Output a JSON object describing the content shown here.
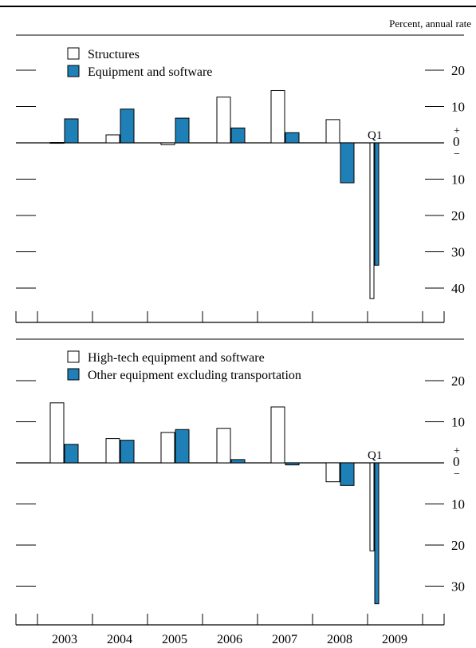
{
  "units": "Percent, annual rate",
  "colors": {
    "open": "#ffffff",
    "filled": "#1f80b8",
    "stroke": "#000000"
  },
  "x_categories": [
    "2003",
    "2004",
    "2005",
    "2006",
    "2007",
    "2008",
    "2009"
  ],
  "chart_data": [
    {
      "type": "bar",
      "categories": [
        "2003",
        "2004",
        "2005",
        "2006",
        "2007",
        "2008",
        "2009"
      ],
      "series": [
        {
          "name": "Structures",
          "values": [
            0.1,
            2.2,
            -0.5,
            12.6,
            14.4,
            6.4,
            -42.9
          ]
        },
        {
          "name": "Equipment and software",
          "values": [
            6.6,
            9.3,
            6.8,
            4.1,
            2.8,
            -11.0,
            -33.7
          ]
        }
      ],
      "annotation": "Q1",
      "y_ticks": [
        {
          "value": 20,
          "label": "20"
        },
        {
          "value": 10,
          "label": "10"
        },
        {
          "value": 0,
          "label": "0"
        },
        {
          "value": -10,
          "label": "10"
        },
        {
          "value": -20,
          "label": "20"
        },
        {
          "value": -30,
          "label": "30"
        },
        {
          "value": -40,
          "label": "40"
        }
      ],
      "ylim": [
        -48,
        28
      ],
      "legend_position": "top-left"
    },
    {
      "type": "bar",
      "categories": [
        "2003",
        "2004",
        "2005",
        "2006",
        "2007",
        "2008",
        "2009"
      ],
      "series": [
        {
          "name": "High-tech equipment and software",
          "values": [
            14.6,
            5.9,
            7.4,
            8.4,
            13.6,
            -4.6,
            -21.4
          ]
        },
        {
          "name": "Other equipment excluding transportation",
          "values": [
            4.5,
            5.5,
            8.1,
            0.8,
            -0.5,
            -5.5,
            -34.3
          ]
        }
      ],
      "annotation": "Q1",
      "y_ticks": [
        {
          "value": 20,
          "label": "20"
        },
        {
          "value": 10,
          "label": "10"
        },
        {
          "value": 0,
          "label": "0"
        },
        {
          "value": -10,
          "label": "10"
        },
        {
          "value": -20,
          "label": "20"
        },
        {
          "value": -30,
          "label": "30"
        }
      ],
      "ylim": [
        -37,
        27
      ],
      "legend_position": "top-left"
    }
  ]
}
